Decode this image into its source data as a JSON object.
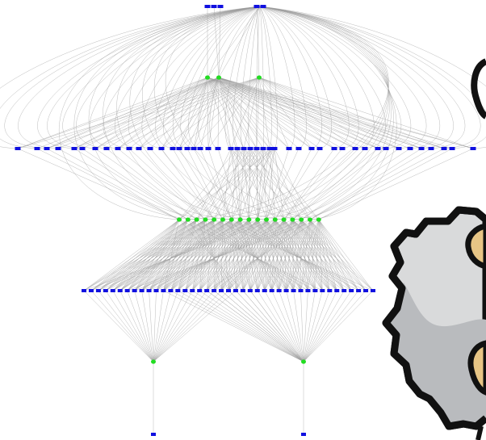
{
  "graph": {
    "colors": {
      "edge": "#9a9a9a",
      "process_node": "#1010e0",
      "hub_node": "#22dd22",
      "background": "#ffffff"
    },
    "layers": [
      {
        "name": "top",
        "kind": "process",
        "count": 5
      },
      {
        "name": "hubs-top",
        "kind": "hub",
        "count": 3
      },
      {
        "name": "upper-row",
        "kind": "process",
        "count": 45
      },
      {
        "name": "hubs-middle",
        "kind": "hub",
        "count": 17
      },
      {
        "name": "lower-row",
        "kind": "process",
        "count": 41
      },
      {
        "name": "hubs-bottom",
        "kind": "hub",
        "count": 2
      },
      {
        "name": "bottom",
        "kind": "process",
        "count": 2
      }
    ]
  },
  "overlay": {
    "icon": "gear-mascot-icon",
    "colors": {
      "outline": "#111111",
      "body": "#d9dadb",
      "shade": "#b9bbbe",
      "accent": "#e7c585"
    }
  }
}
